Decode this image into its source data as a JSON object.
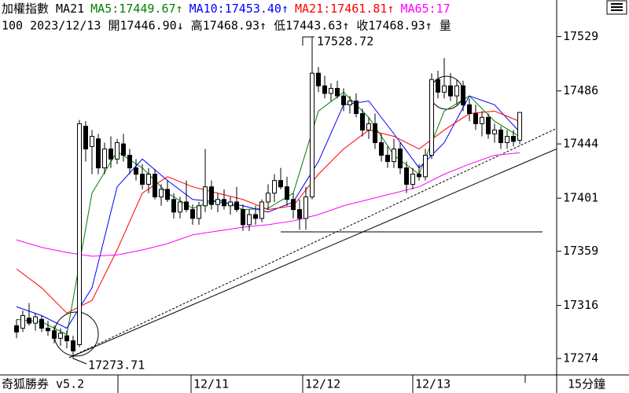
{
  "header": {
    "line1": [
      {
        "text": "加權指數 MA21",
        "color": "#000000"
      },
      {
        "text": "MA5:17449.67↑",
        "color": "#008000"
      },
      {
        "text": "MA10:17453.40↑",
        "color": "#0000ff"
      },
      {
        "text": "MA21:17461.81↑",
        "color": "#ff0000"
      },
      {
        "text": "MA65:17",
        "color": "#ff00ff"
      }
    ],
    "line2": "100 2023/12/13 開17446.90↓ 高17468.93↑ 低17443.63↑ 收17468.93↑ 量"
  },
  "footer": {
    "app": "奇狐勝券 v5.2",
    "period": "15分鐘"
  },
  "chart_data": {
    "type": "candlestick",
    "x_labels": [
      "12/11",
      "12/12",
      "12/13"
    ],
    "annotations": [
      "17528.72",
      "17273.71"
    ],
    "ylim": [
      17261,
      17558
    ],
    "yticks": [
      17529,
      17486,
      17444,
      17401,
      17359,
      17316,
      17274
    ],
    "open": [
      17300,
      17298,
      17306,
      17302,
      17305,
      17298,
      17296,
      17290,
      17292,
      17288,
      17285,
      17458,
      17442,
      17448,
      17425,
      17440,
      17432,
      17444,
      17435,
      17425,
      17420,
      17412,
      17420,
      17402,
      17408,
      17400,
      17390,
      17398,
      17392,
      17385,
      17395,
      17410,
      17396,
      17400,
      17395,
      17398,
      17392,
      17380,
      17388,
      17385,
      17398,
      17405,
      17415,
      17410,
      17400,
      17392,
      17385,
      17402,
      17500,
      17490,
      17484,
      17488,
      17482,
      17475,
      17478,
      17468,
      17455,
      17460,
      17445,
      17435,
      17430,
      17440,
      17425,
      17412,
      17420,
      17418,
      17435,
      17495,
      17485,
      17490,
      17482,
      17490,
      17475,
      17468,
      17460,
      17465,
      17452,
      17455,
      17445,
      17450,
      17446.9
    ],
    "high": [
      17305,
      17312,
      17318,
      17310,
      17308,
      17304,
      17300,
      17298,
      17296,
      17292,
      17463,
      17462,
      17455,
      17452,
      17445,
      17450,
      17448,
      17452,
      17440,
      17432,
      17428,
      17425,
      17424,
      17412,
      17415,
      17405,
      17402,
      17415,
      17396,
      17398,
      17440,
      17415,
      17405,
      17408,
      17402,
      17410,
      17396,
      17392,
      17395,
      17400,
      17412,
      17420,
      17425,
      17418,
      17405,
      17400,
      17410,
      17528.72,
      17505,
      17498,
      17492,
      17494,
      17488,
      17482,
      17484,
      17472,
      17465,
      17468,
      17452,
      17442,
      17448,
      17445,
      17430,
      17425,
      17428,
      17440,
      17500,
      17502,
      17512,
      17500,
      17495,
      17494,
      17480,
      17475,
      17470,
      17468,
      17460,
      17458,
      17455,
      17455,
      17468.93
    ],
    "low": [
      17290,
      17295,
      17300,
      17296,
      17295,
      17292,
      17286,
      17284,
      17282,
      17273.71,
      17283,
      17430,
      17420,
      17420,
      17420,
      17425,
      17428,
      17430,
      17420,
      17415,
      17408,
      17405,
      17400,
      17395,
      17398,
      17385,
      17385,
      17390,
      17380,
      17380,
      17390,
      17392,
      17390,
      17392,
      17388,
      17390,
      17375,
      17375,
      17380,
      17382,
      17392,
      17398,
      17408,
      17395,
      17385,
      17376,
      17376,
      17400,
      17485,
      17480,
      17478,
      17480,
      17470,
      17468,
      17465,
      17450,
      17448,
      17440,
      17430,
      17425,
      17425,
      17420,
      17405,
      17408,
      17415,
      17415,
      17432,
      17480,
      17480,
      17478,
      17475,
      17470,
      17462,
      17455,
      17450,
      17448,
      17445,
      17440,
      17440,
      17442,
      17443.63
    ],
    "close": [
      17295,
      17308,
      17302,
      17307,
      17298,
      17296,
      17290,
      17294,
      17288,
      17280,
      17460,
      17440,
      17450,
      17425,
      17440,
      17432,
      17445,
      17435,
      17425,
      17420,
      17412,
      17420,
      17402,
      17408,
      17400,
      17390,
      17398,
      17392,
      17385,
      17395,
      17410,
      17396,
      17400,
      17395,
      17398,
      17392,
      17380,
      17388,
      17385,
      17398,
      17405,
      17415,
      17410,
      17400,
      17392,
      17385,
      17402,
      17500,
      17490,
      17484,
      17488,
      17482,
      17475,
      17478,
      17468,
      17455,
      17460,
      17445,
      17435,
      17430,
      17440,
      17425,
      17412,
      17420,
      17418,
      17435,
      17495,
      17485,
      17490,
      17482,
      17490,
      17475,
      17468,
      17460,
      17465,
      17452,
      17455,
      17445,
      17450,
      17446,
      17468.93
    ],
    "series": [
      {
        "name": "MA5",
        "color": "#008000",
        "x": [
          0,
          4,
          8,
          12,
          16,
          20,
          24,
          28,
          32,
          36,
          40,
          44,
          48,
          52,
          56,
          60,
          64,
          68,
          72,
          76,
          80
        ],
        "values": [
          17305,
          17303,
          17293,
          17405,
          17438,
          17425,
          17405,
          17393,
          17400,
          17392,
          17393,
          17405,
          17470,
          17485,
          17465,
          17435,
          17420,
          17470,
          17482,
          17462,
          17449.67
        ]
      },
      {
        "name": "MA10",
        "color": "#0000ff",
        "x": [
          0,
          4,
          8,
          12,
          16,
          20,
          24,
          28,
          32,
          36,
          40,
          44,
          48,
          52,
          56,
          60,
          64,
          68,
          72,
          76,
          80
        ],
        "values": [
          17315,
          17308,
          17298,
          17330,
          17410,
          17432,
          17415,
          17400,
          17398,
          17395,
          17390,
          17398,
          17430,
          17475,
          17478,
          17452,
          17425,
          17445,
          17482,
          17475,
          17453.4
        ]
      },
      {
        "name": "MA21",
        "color": "#ff0000",
        "x": [
          0,
          4,
          8,
          12,
          16,
          20,
          24,
          28,
          32,
          36,
          40,
          44,
          48,
          52,
          56,
          60,
          64,
          68,
          72,
          76,
          80
        ],
        "values": [
          17345,
          17330,
          17310,
          17320,
          17360,
          17405,
          17418,
          17410,
          17405,
          17400,
          17392,
          17395,
          17420,
          17440,
          17455,
          17450,
          17440,
          17455,
          17468,
          17470,
          17461.81
        ]
      },
      {
        "name": "MA65",
        "color": "#ff00ff",
        "x": [
          0,
          4,
          8,
          12,
          16,
          20,
          24,
          28,
          32,
          36,
          40,
          44,
          48,
          52,
          56,
          60,
          64,
          68,
          72,
          76,
          80
        ],
        "values": [
          17368,
          17362,
          17358,
          17355,
          17356,
          17360,
          17365,
          17372,
          17375,
          17378,
          17380,
          17383,
          17388,
          17395,
          17400,
          17405,
          17410,
          17420,
          17428,
          17435,
          17437
        ]
      }
    ]
  }
}
